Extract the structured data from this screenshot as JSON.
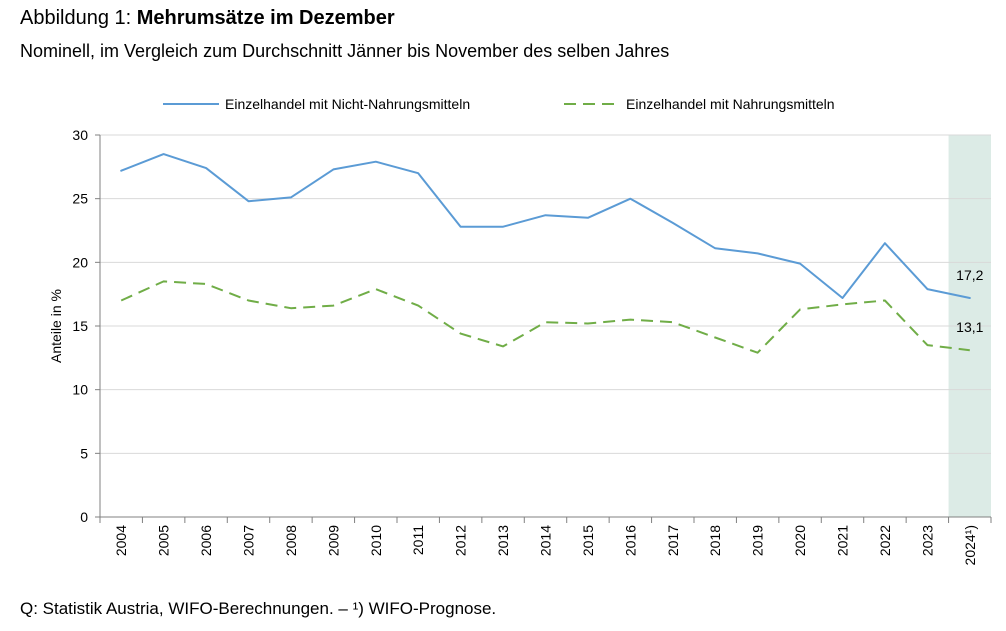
{
  "header": {
    "title_prefix": "Abbildung 1: ",
    "title_bold": "Mehrumsätze im Dezember",
    "subtitle": "Nominell, im Vergleich zum Durchschnitt Jänner bis November des selben Jahres"
  },
  "footer": {
    "source": "Q: Statistik Austria, WIFO-Berechnungen. – ¹) WIFO-Prognose."
  },
  "chart_data": {
    "type": "line",
    "title": "",
    "xlabel": "",
    "ylabel": "Anteile in %",
    "ylim": [
      0,
      30
    ],
    "yticks": [
      "0",
      "5",
      "10",
      "15",
      "20",
      "25",
      "30"
    ],
    "grid": true,
    "legend_position": "top",
    "categories": [
      "2004",
      "2005",
      "2006",
      "2007",
      "2008",
      "2009",
      "2010",
      "2011",
      "2012",
      "2013",
      "2014",
      "2015",
      "2016",
      "2017",
      "2018",
      "2019",
      "2020",
      "2021",
      "2022",
      "2023",
      "2024¹)"
    ],
    "forecast_category": "2024¹)",
    "forecast_shading_color": "#dcebe6",
    "series": [
      {
        "name": "Einzelhandel mit Nicht-Nahrungsmitteln",
        "color": "#5b9bd5",
        "dash": "solid",
        "values": [
          27.2,
          28.5,
          27.4,
          24.8,
          25.1,
          27.3,
          27.9,
          27.0,
          22.8,
          22.8,
          23.7,
          23.5,
          25.0,
          23.1,
          21.1,
          20.7,
          19.9,
          17.2,
          21.5,
          17.9,
          17.2
        ],
        "end_label": "17,2"
      },
      {
        "name": "Einzelhandel mit Nahrungsmitteln",
        "color": "#70ad47",
        "dash": "dashed",
        "values": [
          17.0,
          18.5,
          18.3,
          17.0,
          16.4,
          16.6,
          17.9,
          16.6,
          14.4,
          13.4,
          15.3,
          15.2,
          15.5,
          15.3,
          14.1,
          12.9,
          16.3,
          16.7,
          17.0,
          13.5,
          13.1
        ],
        "end_label": "13,1"
      }
    ]
  }
}
